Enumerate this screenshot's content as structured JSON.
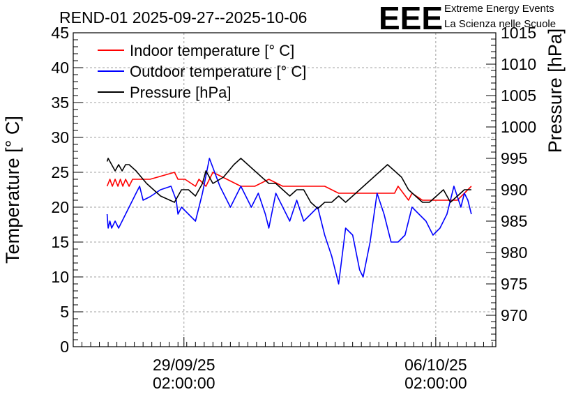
{
  "chart_data": {
    "type": "line",
    "title": "REND-01 2025-09-27--2025-10-06",
    "ylabel_left": "Temperature [° C]",
    "ylabel_right": "Pressure [hPa]",
    "xlabel": "",
    "ylim_left": [
      0,
      45
    ],
    "ylim_right": [
      965,
      1015
    ],
    "xlim_days": [
      0,
      12.1
    ],
    "grid": true,
    "legend_position": "top-left",
    "yticks_left": [
      0,
      5,
      10,
      15,
      20,
      25,
      30,
      35,
      40,
      45
    ],
    "yticks_right": [
      970,
      975,
      980,
      985,
      990,
      995,
      1000,
      1005,
      1010,
      1015
    ],
    "xticks": [
      {
        "day": 3.17,
        "date": "29/09/25",
        "time": "02:00:00"
      },
      {
        "day": 10.38,
        "date": "06/10/25",
        "time": "02:00:00"
      }
    ],
    "series": [
      {
        "name": "Indoor temperature [° C]",
        "color": "#ff0000",
        "axis": "left",
        "x": [
          0.97,
          1.05,
          1.12,
          1.2,
          1.28,
          1.35,
          1.42,
          1.5,
          1.6,
          1.7,
          2.2,
          2.9,
          3.0,
          3.2,
          3.5,
          3.6,
          3.8,
          4.0,
          4.4,
          4.8,
          5.2,
          5.6,
          6.0,
          6.4,
          6.8,
          7.2,
          7.6,
          8.0,
          8.4,
          8.8,
          9.2,
          9.3,
          9.6,
          9.7,
          10.0,
          10.4,
          10.8,
          11.0,
          11.2,
          11.4
        ],
        "y": [
          23,
          24,
          23,
          24,
          23,
          24,
          23,
          24,
          23,
          24,
          24,
          25,
          24,
          24,
          23,
          24,
          23,
          25,
          24,
          23,
          23,
          24,
          23,
          23,
          23,
          23,
          22,
          22,
          22,
          22,
          22,
          23,
          21,
          22,
          21,
          21,
          21,
          21,
          22,
          23
        ]
      },
      {
        "name": "Outdoor temperature [° C]",
        "color": "#0000ff",
        "axis": "left",
        "x": [
          0.97,
          1.0,
          1.05,
          1.1,
          1.2,
          1.3,
          1.4,
          1.5,
          1.6,
          1.7,
          1.8,
          1.9,
          2.0,
          2.2,
          2.5,
          2.8,
          2.95,
          3.0,
          3.1,
          3.3,
          3.5,
          3.7,
          3.9,
          4.2,
          4.5,
          4.8,
          5.1,
          5.3,
          5.5,
          5.6,
          5.8,
          6.0,
          6.2,
          6.4,
          6.6,
          6.8,
          7.0,
          7.2,
          7.4,
          7.6,
          7.8,
          8.0,
          8.2,
          8.3,
          8.5,
          8.7,
          8.9,
          9.1,
          9.3,
          9.5,
          9.7,
          9.9,
          10.1,
          10.3,
          10.5,
          10.7,
          10.9,
          11.1,
          11.2,
          11.3,
          11.4
        ],
        "y": [
          19,
          17,
          18,
          17,
          18,
          17,
          18,
          19,
          20,
          21,
          22,
          23,
          21,
          21.5,
          22.5,
          23,
          21,
          19,
          20,
          19,
          18,
          22,
          27,
          23,
          20,
          23,
          20,
          22,
          19,
          17,
          22,
          20,
          18,
          21,
          18,
          19,
          20,
          16,
          13,
          9,
          17,
          16,
          11,
          10,
          15,
          22,
          19,
          15,
          15,
          16,
          20,
          19,
          18,
          16,
          17,
          19,
          23,
          20,
          22,
          21,
          19
        ]
      },
      {
        "name": "Pressure [hPa]",
        "color": "#000000",
        "axis": "right",
        "x": [
          0.97,
          1.0,
          1.05,
          1.1,
          1.2,
          1.3,
          1.4,
          1.5,
          1.6,
          1.8,
          2.1,
          2.5,
          2.9,
          3.0,
          3.1,
          3.3,
          3.5,
          3.7,
          3.8,
          4.0,
          4.3,
          4.6,
          4.8,
          5.0,
          5.2,
          5.4,
          5.6,
          5.8,
          6.0,
          6.2,
          6.4,
          6.6,
          6.8,
          7.0,
          7.2,
          7.4,
          7.6,
          7.8,
          8.0,
          8.2,
          8.4,
          8.6,
          8.8,
          9.0,
          9.2,
          9.4,
          9.6,
          9.8,
          10.0,
          10.2,
          10.4,
          10.6,
          10.8,
          11.0,
          11.2,
          11.4
        ],
        "y": [
          994.5,
          995,
          994.5,
          994,
          993,
          994,
          993,
          994,
          994,
          993,
          991,
          989,
          988,
          989,
          990,
          990,
          989,
          991,
          993,
          991,
          992,
          994,
          995,
          994,
          993,
          992,
          991,
          991,
          990,
          989,
          990,
          990,
          988,
          987,
          988,
          988,
          989,
          988,
          989,
          990,
          991,
          992,
          993,
          994,
          993,
          992,
          990,
          989,
          988,
          988,
          989,
          990,
          988,
          989,
          990,
          990
        ]
      }
    ]
  },
  "logo": {
    "mark": "EEE",
    "line1": "Extreme Energy Events",
    "line2": "La Scienza nelle Scuole",
    "color": "#0000ff"
  }
}
